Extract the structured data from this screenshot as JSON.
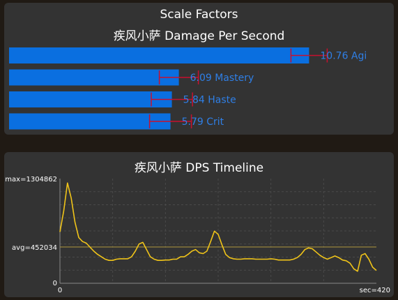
{
  "chart_data": [
    {
      "type": "bar",
      "orientation": "horizontal",
      "title": "Scale Factors",
      "subtitle": "疾风小萨 Damage Per Second",
      "categories": [
        "Agi",
        "Mastery",
        "Haste",
        "Crit"
      ],
      "values": [
        10.76,
        6.09,
        5.84,
        5.79
      ],
      "value_labels": [
        "10.76",
        "6.09",
        "5.84",
        "5.79"
      ],
      "error_low": [
        10.11,
        5.39,
        5.1,
        5.04
      ],
      "error_high": [
        11.41,
        6.79,
        6.58,
        6.54
      ],
      "xlim": [
        0,
        13.6
      ],
      "colors": {
        "bar": "#0a6fe0",
        "label": "#2f7fe6",
        "error": "#c8102e"
      }
    },
    {
      "type": "line",
      "title": "疾风小萨 DPS Timeline",
      "max_label": "max=1304862",
      "avg_label": "avg=452034",
      "y_zero_label": "0",
      "x_start_label": "0",
      "x_end_label": "sec=420",
      "ylim": [
        0,
        1304862
      ],
      "xlim": [
        0,
        420
      ],
      "avg": 452034,
      "grid": true,
      "colors": {
        "line": "#f0c419",
        "avg_line": "#b09a3c",
        "grid": "#4a4a4a",
        "label": "#ffffff"
      },
      "x": [
        0,
        5,
        10,
        15,
        20,
        25,
        30,
        35,
        40,
        45,
        50,
        55,
        60,
        65,
        70,
        75,
        80,
        85,
        90,
        95,
        100,
        105,
        110,
        115,
        120,
        125,
        130,
        135,
        140,
        145,
        150,
        155,
        160,
        165,
        170,
        175,
        180,
        185,
        190,
        195,
        200,
        205,
        210,
        215,
        220,
        225,
        230,
        235,
        240,
        245,
        250,
        255,
        260,
        265,
        270,
        275,
        280,
        285,
        290,
        295,
        300,
        305,
        310,
        315,
        320,
        325,
        330,
        335,
        340,
        345,
        350,
        355,
        360,
        365,
        370,
        375,
        380,
        385,
        390,
        395,
        400,
        405,
        410,
        415,
        420
      ],
      "y": [
        640000,
        900000,
        1250000,
        1060000,
        760000,
        570000,
        520000,
        500000,
        450000,
        400000,
        360000,
        330000,
        300000,
        285000,
        285000,
        300000,
        305000,
        305000,
        305000,
        330000,
        400000,
        490000,
        510000,
        420000,
        330000,
        300000,
        285000,
        285000,
        290000,
        290000,
        300000,
        300000,
        330000,
        330000,
        360000,
        400000,
        420000,
        380000,
        370000,
        400000,
        520000,
        650000,
        610000,
        480000,
        360000,
        320000,
        305000,
        300000,
        300000,
        305000,
        305000,
        305000,
        300000,
        300000,
        300000,
        300000,
        305000,
        300000,
        290000,
        290000,
        290000,
        290000,
        300000,
        320000,
        360000,
        420000,
        440000,
        430000,
        390000,
        350000,
        320000,
        300000,
        320000,
        340000,
        320000,
        290000,
        280000,
        250000,
        180000,
        150000,
        350000,
        370000,
        300000,
        200000,
        160000
      ]
    }
  ]
}
